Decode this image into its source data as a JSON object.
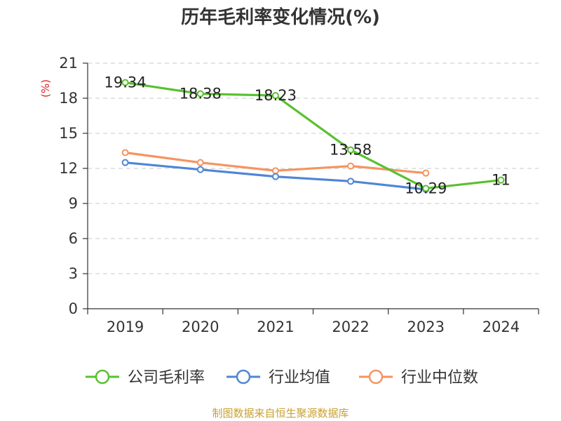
{
  "chart_data": {
    "type": "line",
    "title": "历年毛利率变化情况(%)",
    "ylabel": "(%)",
    "xlabel": "",
    "categories": [
      "2019",
      "2020",
      "2021",
      "2022",
      "2023",
      "2024"
    ],
    "ylim": [
      0,
      21
    ],
    "yticks": [
      0,
      3,
      6,
      9,
      12,
      15,
      18,
      21
    ],
    "grid": true,
    "legend_position": "bottom",
    "series": [
      {
        "name": "公司毛利率",
        "color": "#5ac12f",
        "values": [
          19.34,
          18.38,
          18.23,
          13.58,
          10.29,
          11
        ],
        "labels": [
          "19.34",
          "18.38",
          "18.23",
          "13.58",
          "10.29",
          "11"
        ]
      },
      {
        "name": "行业均值",
        "color": "#4f86d6",
        "values": [
          12.5,
          11.9,
          11.3,
          10.9,
          10.2,
          null
        ]
      },
      {
        "name": "行业中位数",
        "color": "#f59460",
        "values": [
          13.35,
          12.5,
          11.8,
          12.2,
          11.6,
          null
        ]
      }
    ]
  },
  "footer": {
    "source": "制图数据来自恒生聚源数据库"
  }
}
